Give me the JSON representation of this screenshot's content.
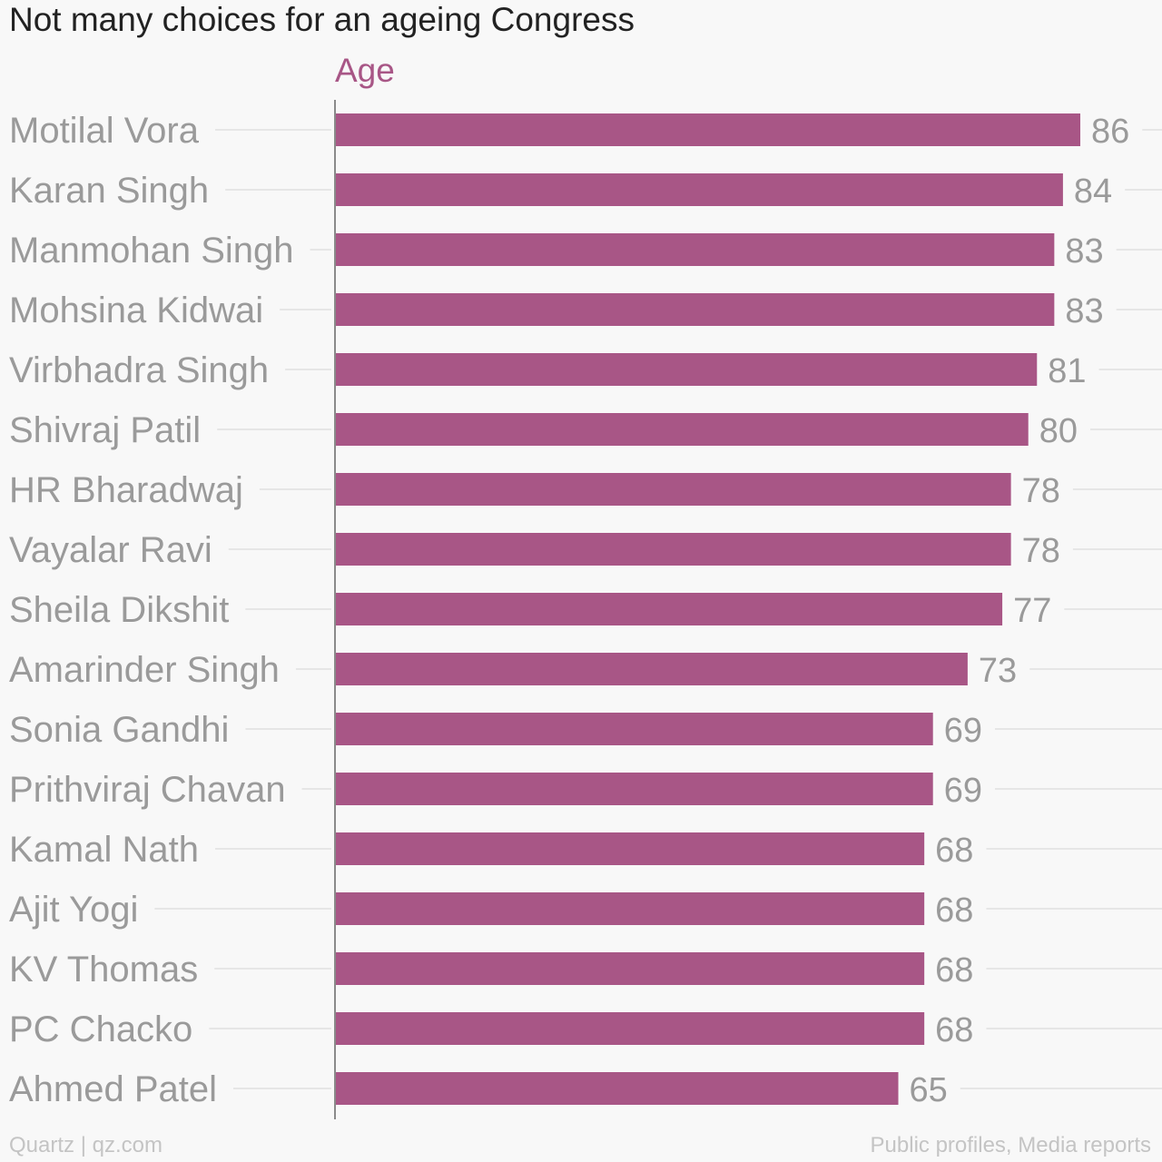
{
  "chart_data": {
    "type": "bar",
    "orientation": "horizontal",
    "title": "Not many choices for an ageing Congress",
    "series": [
      {
        "name": "Age",
        "color": "#a85686",
        "values": [
          86,
          84,
          83,
          83,
          81,
          80,
          78,
          78,
          77,
          73,
          69,
          69,
          68,
          68,
          68,
          68,
          65
        ]
      }
    ],
    "categories": [
      "Motilal Vora",
      "Karan Singh",
      "Manmohan Singh",
      "Mohsina Kidwai",
      "Virbhadra Singh",
      "Shivraj Patil",
      "HR Bharadwaj",
      "Vayalar Ravi",
      "Sheila Dikshit",
      "Amarinder Singh",
      "Sonia Gandhi",
      "Prithviraj Chavan",
      "Kamal Nath",
      "Ajit Yogi",
      "KV Thomas",
      "PC Chacko",
      "Ahmed Patel"
    ],
    "xlim": [
      0,
      86
    ],
    "data_labels": true,
    "grid": true
  },
  "footer": {
    "source_left": "Quartz | qz.com",
    "source_right": "Public profiles, Media reports"
  }
}
